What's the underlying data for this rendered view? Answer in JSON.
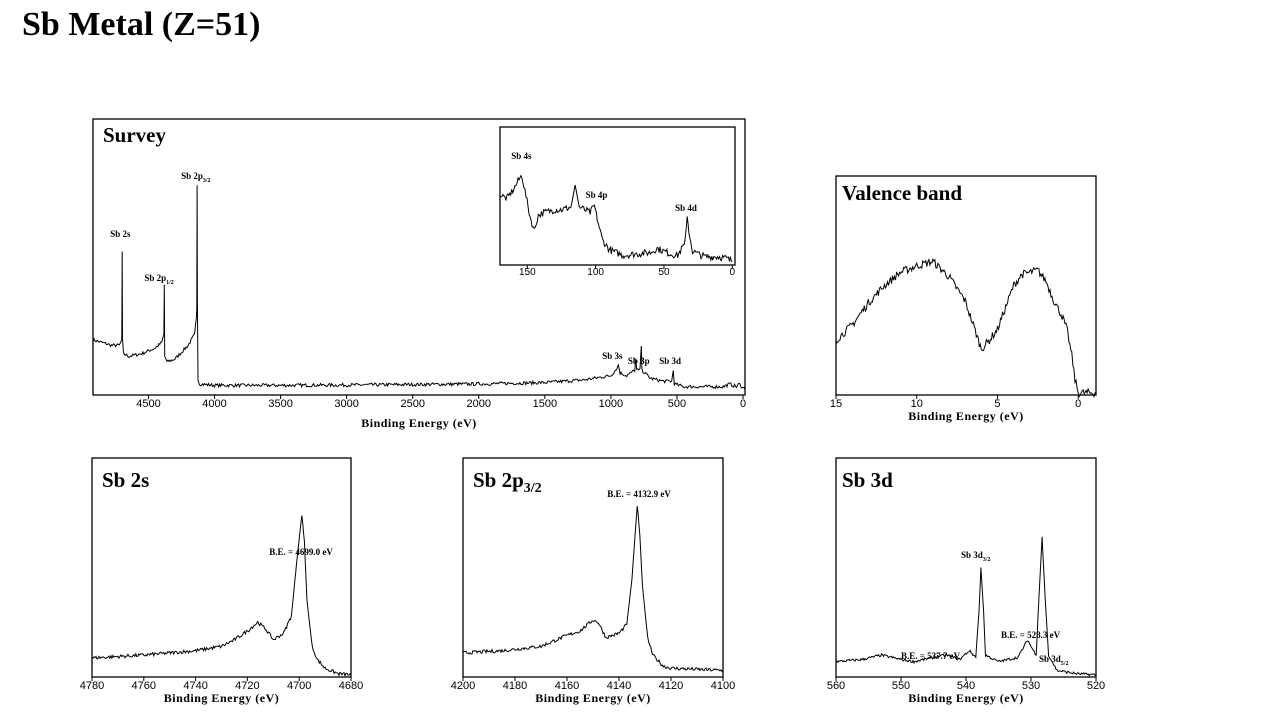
{
  "title": "Sb Metal (Z=51)",
  "chart_data": [
    {
      "id": "survey",
      "type": "line",
      "title": "Survey",
      "xlabel": "Binding Energy (eV)",
      "xlim": [
        4920,
        -15
      ],
      "ylim": [
        0,
        100
      ],
      "xticks": [
        4500,
        4000,
        3500,
        3000,
        2500,
        2000,
        1500,
        1000,
        500,
        0
      ],
      "annotations": [
        {
          "main": "Sb 2s",
          "sub": "",
          "x": 4699
        },
        {
          "main": "Sb 2p",
          "sub": "1/2",
          "x": 4380
        },
        {
          "main": "Sb 2p",
          "sub": "3/2",
          "x": 4132
        },
        {
          "main": "Sb 3s",
          "sub": "",
          "x": 944
        },
        {
          "main": "Sb 3p",
          "sub": "",
          "x": 766
        },
        {
          "main": "Sb 3d",
          "sub": "",
          "x": 528
        }
      ],
      "points": [
        [
          4920,
          20
        ],
        [
          4850,
          19
        ],
        [
          4780,
          18
        ],
        [
          4720,
          18
        ],
        [
          4702,
          20
        ],
        [
          4699,
          52
        ],
        [
          4697,
          20
        ],
        [
          4690,
          15
        ],
        [
          4650,
          14
        ],
        [
          4550,
          15
        ],
        [
          4450,
          17
        ],
        [
          4400,
          19
        ],
        [
          4383,
          22
        ],
        [
          4380,
          40
        ],
        [
          4377,
          14
        ],
        [
          4360,
          12
        ],
        [
          4300,
          13
        ],
        [
          4200,
          18
        ],
        [
          4150,
          22
        ],
        [
          4138,
          28
        ],
        [
          4134,
          31
        ],
        [
          4132,
          76
        ],
        [
          4130,
          35
        ],
        [
          4125,
          6
        ],
        [
          4115,
          4
        ],
        [
          4000,
          3.5
        ],
        [
          3500,
          3.5
        ],
        [
          3000,
          3.6
        ],
        [
          2500,
          3.8
        ],
        [
          2000,
          4
        ],
        [
          1500,
          4.5
        ],
        [
          1200,
          5.5
        ],
        [
          1000,
          7
        ],
        [
          950,
          10
        ],
        [
          944,
          11
        ],
        [
          930,
          8
        ],
        [
          880,
          7
        ],
        [
          820,
          9
        ],
        [
          812,
          13
        ],
        [
          805,
          9
        ],
        [
          780,
          9
        ],
        [
          770,
          18
        ],
        [
          765,
          9
        ],
        [
          700,
          6
        ],
        [
          600,
          5
        ],
        [
          540,
          5
        ],
        [
          528,
          9
        ],
        [
          520,
          4
        ],
        [
          450,
          3
        ],
        [
          300,
          3
        ],
        [
          150,
          3
        ],
        [
          100,
          4
        ],
        [
          50,
          3
        ],
        [
          30,
          4
        ],
        [
          -15,
          2
        ]
      ]
    },
    {
      "id": "inset",
      "type": "line",
      "title": "",
      "xlabel": "",
      "xlim": [
        170,
        -2
      ],
      "ylim": [
        0,
        100
      ],
      "xticks": [
        150,
        100,
        50,
        0
      ],
      "annotations": [
        {
          "main": "Sb 4s",
          "sub": "",
          "x": 153
        },
        {
          "main": "Sb 4p",
          "sub": "",
          "x": 100
        },
        {
          "main": "Sb 4d",
          "sub": "",
          "x": 33
        }
      ],
      "points": [
        [
          170,
          51
        ],
        [
          165,
          48
        ],
        [
          160,
          55
        ],
        [
          156,
          62
        ],
        [
          154,
          65
        ],
        [
          151,
          50
        ],
        [
          148,
          35
        ],
        [
          145,
          25
        ],
        [
          142,
          36
        ],
        [
          138,
          38
        ],
        [
          130,
          40
        ],
        [
          125,
          40
        ],
        [
          118,
          42
        ],
        [
          115,
          58
        ],
        [
          112,
          42
        ],
        [
          108,
          40
        ],
        [
          104,
          38
        ],
        [
          101,
          43
        ],
        [
          98,
          30
        ],
        [
          95,
          18
        ],
        [
          92,
          14
        ],
        [
          90,
          11
        ],
        [
          85,
          9
        ],
        [
          80,
          7
        ],
        [
          70,
          8
        ],
        [
          60,
          9
        ],
        [
          55,
          12
        ],
        [
          50,
          10
        ],
        [
          45,
          8
        ],
        [
          40,
          7
        ],
        [
          35,
          15
        ],
        [
          33,
          33
        ],
        [
          31,
          20
        ],
        [
          29,
          10
        ],
        [
          25,
          8
        ],
        [
          20,
          6
        ],
        [
          10,
          6
        ],
        [
          5,
          5
        ],
        [
          0,
          3
        ]
      ]
    },
    {
      "id": "valence",
      "type": "line",
      "title": "Valence band",
      "xlabel": "Binding Energy (eV)",
      "xlim": [
        15,
        -1.1
      ],
      "ylim": [
        0,
        100
      ],
      "xticks": [
        15,
        10,
        5,
        0
      ],
      "annotations": [],
      "points": [
        [
          15,
          25
        ],
        [
          14,
          32
        ],
        [
          13,
          42
        ],
        [
          12,
          50
        ],
        [
          11,
          56
        ],
        [
          10,
          59
        ],
        [
          9,
          61
        ],
        [
          8,
          54
        ],
        [
          7,
          43
        ],
        [
          6.5,
          32
        ],
        [
          6,
          21
        ],
        [
          5.5,
          25
        ],
        [
          5,
          30
        ],
        [
          4.5,
          40
        ],
        [
          4,
          50
        ],
        [
          3.5,
          55
        ],
        [
          2.5,
          57
        ],
        [
          2,
          52
        ],
        [
          1.5,
          43
        ],
        [
          1,
          36
        ],
        [
          0.7,
          30
        ],
        [
          0.4,
          18
        ],
        [
          0.2,
          7
        ],
        [
          0,
          1
        ],
        [
          -1.1,
          1
        ]
      ]
    },
    {
      "id": "sb2s",
      "type": "line",
      "title": "Sb 2s",
      "title_sub": "",
      "xlabel": "Binding Energy (eV)",
      "xlim": [
        4780,
        4680
      ],
      "ylim": [
        0,
        100
      ],
      "xticks": [
        4780,
        4760,
        4740,
        4720,
        4700,
        4680
      ],
      "annotations": [
        {
          "main": "B.E. = 4699.0 eV",
          "sub": "",
          "x": 4700
        }
      ],
      "points": [
        [
          4780,
          8.7
        ],
        [
          4760,
          10
        ],
        [
          4740,
          12
        ],
        [
          4730,
          14
        ],
        [
          4725,
          17
        ],
        [
          4720,
          21
        ],
        [
          4716,
          25
        ],
        [
          4713,
          22
        ],
        [
          4710,
          17
        ],
        [
          4706,
          20
        ],
        [
          4703,
          28
        ],
        [
          4701,
          52
        ],
        [
          4699,
          74
        ],
        [
          4698,
          62
        ],
        [
          4697,
          35
        ],
        [
          4695,
          14
        ],
        [
          4693,
          8
        ],
        [
          4690,
          4
        ],
        [
          4685,
          1.5
        ],
        [
          4680,
          1
        ]
      ]
    },
    {
      "id": "sb2p32",
      "type": "line",
      "title": "Sb 2p",
      "title_sub": "3/2",
      "xlabel": "Binding Energy (eV)",
      "xlim": [
        4200,
        4100
      ],
      "ylim": [
        0,
        100
      ],
      "xticks": [
        4200,
        4180,
        4160,
        4140,
        4120,
        4100
      ],
      "annotations": [
        {
          "main": "B.E. = 4132.9 eV",
          "sub": "",
          "x": 4133
        }
      ],
      "points": [
        [
          4200,
          11
        ],
        [
          4185,
          12
        ],
        [
          4170,
          14
        ],
        [
          4160,
          19
        ],
        [
          4155,
          21
        ],
        [
          4150,
          26
        ],
        [
          4148,
          25
        ],
        [
          4145,
          18
        ],
        [
          4140,
          20
        ],
        [
          4137,
          24
        ],
        [
          4135,
          45
        ],
        [
          4133,
          78.5
        ],
        [
          4132,
          65
        ],
        [
          4131,
          42
        ],
        [
          4129,
          18
        ],
        [
          4127,
          10
        ],
        [
          4123,
          5
        ],
        [
          4120,
          4
        ],
        [
          4110,
          3.5
        ],
        [
          4100,
          3
        ]
      ]
    },
    {
      "id": "sb3d",
      "type": "line",
      "title": "Sb 3d",
      "title_sub": "",
      "xlabel": "Binding Energy (eV)",
      "xlim": [
        560,
        520
      ],
      "ylim": [
        0,
        100
      ],
      "xticks": [
        560,
        550,
        540,
        530,
        520
      ],
      "annotations": [
        {
          "main": "B.E. = 537.7 eV",
          "sub": "",
          "x": 546
        },
        {
          "main": "Sb 3d",
          "sub": "3/2",
          "x": 537.7
        },
        {
          "main": "B.E. = 528.3 eV",
          "sub": "",
          "x": 530
        },
        {
          "main": "Sb 3d",
          "sub": "5/2",
          "x": 526
        }
      ],
      "points": [
        [
          560,
          7
        ],
        [
          556,
          8
        ],
        [
          553,
          10
        ],
        [
          550,
          8
        ],
        [
          548,
          7
        ],
        [
          545,
          9
        ],
        [
          543,
          10
        ],
        [
          541,
          8
        ],
        [
          539.5,
          12
        ],
        [
          538.5,
          9
        ],
        [
          538,
          30
        ],
        [
          537.7,
          50
        ],
        [
          537.3,
          30
        ],
        [
          537,
          10
        ],
        [
          535,
          7
        ],
        [
          532,
          9
        ],
        [
          530.5,
          17
        ],
        [
          530,
          14
        ],
        [
          529.2,
          10
        ],
        [
          528.8,
          35
        ],
        [
          528.3,
          64
        ],
        [
          527.8,
          35
        ],
        [
          527.3,
          10
        ],
        [
          526,
          3
        ],
        [
          523,
          1.5
        ],
        [
          520,
          1
        ]
      ]
    }
  ]
}
